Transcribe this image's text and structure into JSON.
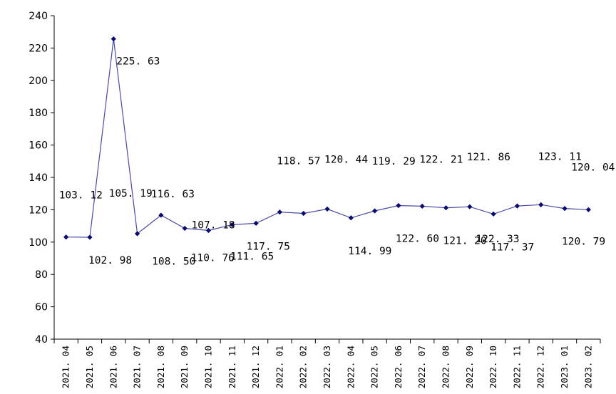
{
  "chart_data": {
    "type": "line",
    "title": "",
    "xlabel": "",
    "ylabel": "",
    "ylim": [
      40,
      240
    ],
    "yticks": [
      40,
      60,
      80,
      100,
      120,
      140,
      160,
      180,
      200,
      220,
      240
    ],
    "grid": false,
    "legend": "none",
    "categories": [
      "2021.04",
      "2021.05",
      "2021.06",
      "2021.07",
      "2021.08",
      "2021.09",
      "2021.10",
      "2021.11",
      "2021.12",
      "2022.01",
      "2022.02",
      "2022.03",
      "2022.04",
      "2022.05",
      "2022.06",
      "2022.07",
      "2022.08",
      "2022.09",
      "2022.10",
      "2022.11",
      "2022.12",
      "2023.01",
      "2023.02"
    ],
    "category_labels": [
      "2021. 04",
      "2021. 05",
      "2021. 06",
      "2021. 07",
      "2021. 08",
      "2021. 09",
      "2021. 10",
      "2021. 11",
      "2021. 12",
      "2022. 01",
      "2022. 02",
      "2022. 03",
      "2022. 04",
      "2022. 05",
      "2022. 06",
      "2022. 07",
      "2022. 08",
      "2022. 09",
      "2022. 10",
      "2022. 11",
      "2022. 12",
      "2023. 01",
      "2023. 02"
    ],
    "series": [
      {
        "color": "#4a4aa8",
        "marker_color": "#0b0b6e",
        "values": [
          103.12,
          102.98,
          225.63,
          105.19,
          116.63,
          108.5,
          107.18,
          110.76,
          111.65,
          118.57,
          117.75,
          120.44,
          114.99,
          119.29,
          122.6,
          122.21,
          121.2,
          121.86,
          117.37,
          122.33,
          123.11,
          120.79,
          120.04
        ],
        "value_labels": [
          "103. 12",
          "102. 98",
          "225. 63",
          "105. 19",
          "116. 63",
          "108. 50",
          "107. 18",
          "110. 76",
          "111. 65",
          "118. 57",
          "117. 75",
          "120. 44",
          "114. 99",
          "119. 29",
          "122. 60",
          "122. 21",
          "121. 20",
          "121. 86",
          "117. 37",
          "122. 33",
          "123. 11",
          "120. 79",
          "120. 04"
        ]
      }
    ]
  }
}
